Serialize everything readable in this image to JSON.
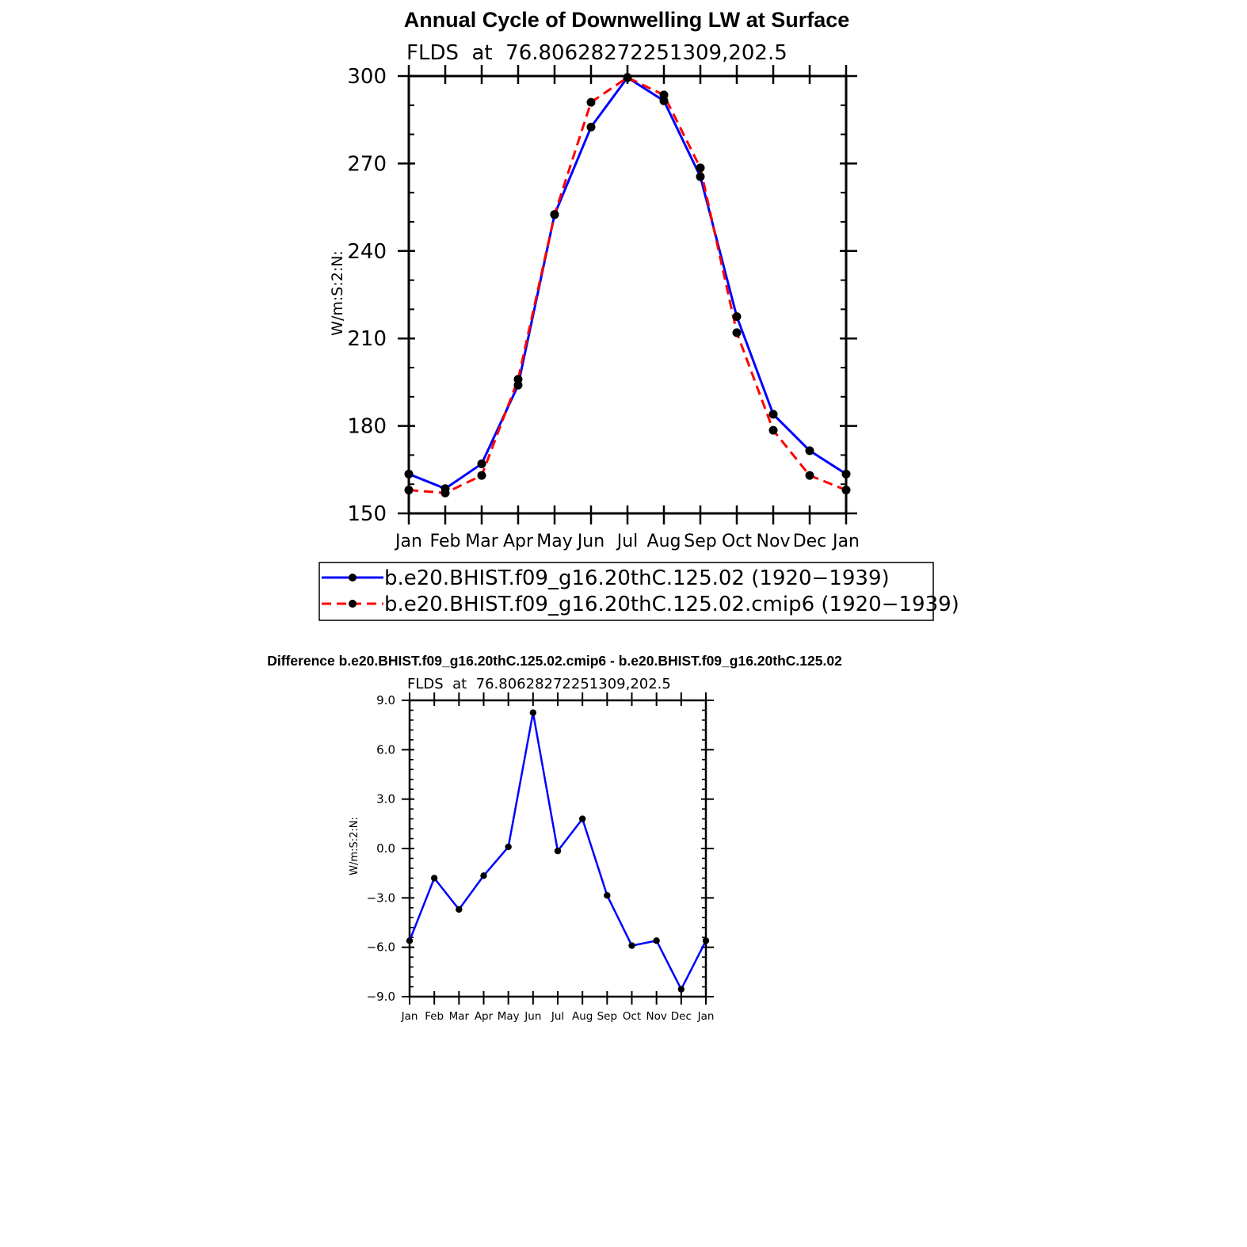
{
  "chart_data": [
    {
      "type": "line",
      "title": "Annual Cycle of Downwelling LW at Surface",
      "subtitle": "FLDS  at  76.80628272251309,202.5",
      "ylabel": "W/m:S:2:N:",
      "xlabel": "",
      "categories": [
        "Jan",
        "Feb",
        "Mar",
        "Apr",
        "May",
        "Jun",
        "Jul",
        "Aug",
        "Sep",
        "Oct",
        "Nov",
        "Dec",
        "Jan"
      ],
      "ylim": [
        150,
        300
      ],
      "yticks": [
        "150",
        "180",
        "210",
        "240",
        "270",
        "300"
      ],
      "legend_position": "below",
      "series": [
        {
          "name": "b.e20.BHIST.f09_g16.20thC.125.02 (1920−1939)",
          "color": "#0000ff",
          "dash": "solid",
          "values": [
            163.5,
            158.5,
            167,
            194,
            252.5,
            282.5,
            299.5,
            291.5,
            265.5,
            217.5,
            184,
            171.5,
            163.5
          ]
        },
        {
          "name": "b.e20.BHIST.f09_g16.20thC.125.02.cmip6 (1920−1939)",
          "color": "#ff0000",
          "dash": "dashed",
          "values": [
            158,
            157,
            163,
            196,
            252.5,
            291,
            299.5,
            293.5,
            268.5,
            212,
            178.5,
            163,
            158
          ]
        }
      ]
    },
    {
      "type": "line",
      "title": "Difference b.e20.BHIST.f09_g16.20thC.125.02.cmip6 - b.e20.BHIST.f09_g16.20thC.125.02",
      "subtitle": "FLDS  at  76.80628272251309,202.5",
      "ylabel": "W/m:S:2:N:",
      "xlabel": "",
      "categories": [
        "Jan",
        "Feb",
        "Mar",
        "Apr",
        "May",
        "Jun",
        "Jul",
        "Aug",
        "Sep",
        "Oct",
        "Nov",
        "Dec",
        "Jan"
      ],
      "ylim": [
        -9,
        9
      ],
      "yticks": [
        "−9.0",
        "−6.0",
        "−3.0",
        "0.0",
        "3.0",
        "6.0",
        "9.0"
      ],
      "series": [
        {
          "name": "difference",
          "color": "#0000ff",
          "dash": "solid",
          "values": [
            -5.6,
            -1.8,
            -3.7,
            -1.65,
            0.1,
            8.25,
            -0.15,
            1.8,
            -2.85,
            -5.9,
            -5.6,
            -8.55,
            -5.6
          ]
        }
      ]
    }
  ]
}
